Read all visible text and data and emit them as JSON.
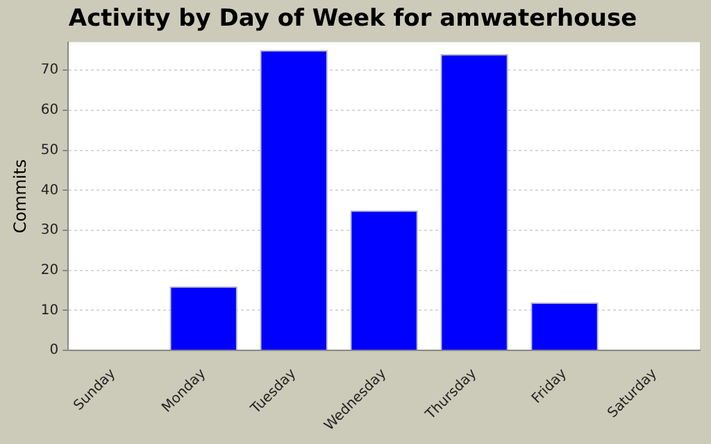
{
  "chart_data": {
    "type": "bar",
    "title": "Activity by Day of Week for amwaterhouse",
    "ylabel": "Commits",
    "categories": [
      "Sunday",
      "Monday",
      "Tuesday",
      "Wednesday",
      "Thursday",
      "Friday",
      "Saturday"
    ],
    "values": [
      0,
      16,
      75,
      35,
      74,
      12,
      0
    ],
    "color": "#0000ff",
    "ylim": [
      0,
      77
    ],
    "yticks": [
      0,
      10,
      20,
      30,
      40,
      50,
      60,
      70
    ],
    "grid": "y",
    "legend": false
  }
}
